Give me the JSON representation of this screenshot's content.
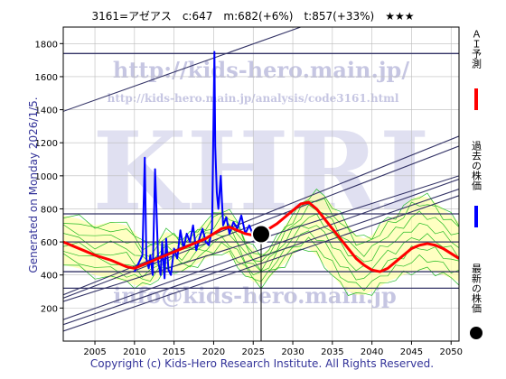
{
  "header": {
    "title": "3161=アゼアス　c:647　m:682(+6%)　t:857(+33%)　★★★"
  },
  "side_label": "Generated on Monday 2026/1/5.",
  "footer": "Copyright (c) Kids-Hero Research Institute. All Rights Reserved.",
  "watermarks": {
    "brand": "KHRI",
    "url1": "http://kids-hero.main.jp/",
    "url2": "http://kids-hero.main.jp/analysis/code3161.html",
    "email": "info@kids-hero.main.jp"
  },
  "legend": [
    {
      "label": "ＡＩ予測",
      "color": "#ff0000",
      "marker": "line"
    },
    {
      "label": "過去の株価",
      "color": "#0000ff",
      "marker": "line"
    },
    {
      "label": "最新の株価",
      "color": "#000000",
      "marker": "dot"
    }
  ],
  "chart_data": {
    "type": "line",
    "xlim": [
      2001,
      2051
    ],
    "ylim": [
      0,
      1900
    ],
    "x_ticks": [
      2005,
      2010,
      2015,
      2020,
      2025,
      2030,
      2035,
      2040,
      2045,
      2050
    ],
    "y_ticks": [
      200,
      400,
      600,
      800,
      1000,
      1200,
      1400,
      1600,
      1800
    ],
    "horizontal_lines": [
      1740,
      770,
      600,
      420,
      320
    ],
    "trend_lines": [
      {
        "x": [
          2001,
          2031
        ],
        "y": [
          1390,
          1900
        ]
      },
      {
        "x": [
          2001,
          2051
        ],
        "y": [
          280,
          1240
        ]
      },
      {
        "x": [
          2001,
          2051
        ],
        "y": [
          260,
          1180
        ]
      },
      {
        "x": [
          2001,
          2051
        ],
        "y": [
          240,
          1000
        ]
      },
      {
        "x": [
          2001,
          2051
        ],
        "y": [
          130,
          980
        ]
      },
      {
        "x": [
          2001,
          2051
        ],
        "y": [
          100,
          920
        ]
      },
      {
        "x": [
          2001,
          2051
        ],
        "y": [
          60,
          880
        ]
      }
    ],
    "latest": {
      "x": 2026.0,
      "y": 647
    },
    "series": [
      {
        "name": "過去の株価",
        "color": "#0000ff",
        "x": [
          2010.0,
          2010.5,
          2011.0,
          2011.3,
          2011.5,
          2011.8,
          2012.0,
          2012.3,
          2012.6,
          2013.0,
          2013.3,
          2013.5,
          2013.8,
          2014.0,
          2014.3,
          2014.6,
          2015.0,
          2015.4,
          2015.8,
          2016.2,
          2016.6,
          2017.0,
          2017.4,
          2017.8,
          2018.2,
          2018.6,
          2019.0,
          2019.4,
          2019.8,
          2020.0,
          2020.1,
          2020.2,
          2020.4,
          2020.6,
          2020.9,
          2021.2,
          2021.6,
          2022.0,
          2022.5,
          2023.0,
          2023.5,
          2024.0,
          2024.5,
          2025.0
        ],
        "y": [
          420,
          470,
          520,
          1110,
          500,
          440,
          520,
          400,
          1040,
          480,
          400,
          600,
          380,
          620,
          430,
          400,
          560,
          500,
          670,
          560,
          650,
          600,
          700,
          550,
          620,
          680,
          600,
          580,
          680,
          1400,
          1750,
          1180,
          900,
          800,
          1000,
          700,
          750,
          650,
          720,
          680,
          760,
          650,
          700,
          640
        ]
      },
      {
        "name": "ＡＩ予測",
        "color": "#ff0000",
        "x": [
          2001,
          2003,
          2005,
          2007,
          2009,
          2010,
          2011,
          2012,
          2013,
          2014,
          2015,
          2016,
          2017,
          2018,
          2019,
          2020,
          2021,
          2022,
          2023,
          2024,
          2025,
          2026,
          2027,
          2028,
          2029,
          2030,
          2031,
          2032,
          2033,
          2034,
          2035,
          2036,
          2037,
          2038,
          2039,
          2040,
          2041,
          2042,
          2043,
          2044,
          2045,
          2046,
          2047,
          2048,
          2049,
          2050,
          2051
        ],
        "y": [
          600,
          560,
          520,
          490,
          450,
          440,
          460,
          480,
          500,
          520,
          540,
          560,
          580,
          600,
          620,
          650,
          680,
          690,
          670,
          650,
          640,
          650,
          680,
          710,
          750,
          790,
          830,
          840,
          800,
          740,
          680,
          620,
          560,
          500,
          460,
          430,
          420,
          440,
          480,
          520,
          560,
          580,
          590,
          580,
          560,
          530,
          500
        ]
      }
    ],
    "bands": {
      "x": [
        2001,
        2003,
        2005,
        2007,
        2009,
        2010,
        2011,
        2012,
        2013,
        2014,
        2015,
        2016,
        2017,
        2018,
        2019,
        2020,
        2021,
        2022,
        2023,
        2024,
        2025,
        2026,
        2027,
        2028,
        2029,
        2030,
        2031,
        2032,
        2033,
        2034,
        2035,
        2036,
        2037,
        2038,
        2039,
        2040,
        2041,
        2042,
        2043,
        2044,
        2045,
        2046,
        2047,
        2048,
        2049,
        2050,
        2051
      ],
      "upper": [
        760,
        740,
        700,
        720,
        700,
        660,
        600,
        580,
        620,
        660,
        650,
        620,
        640,
        680,
        720,
        760,
        800,
        780,
        720,
        620,
        560,
        520,
        560,
        620,
        700,
        760,
        820,
        880,
        900,
        880,
        820,
        760,
        700,
        640,
        620,
        640,
        700,
        740,
        760,
        800,
        860,
        880,
        870,
        840,
        800,
        760,
        720
      ],
      "lower": [
        460,
        440,
        400,
        380,
        360,
        340,
        330,
        350,
        380,
        420,
        430,
        420,
        440,
        470,
        500,
        520,
        540,
        520,
        460,
        400,
        360,
        340,
        380,
        430,
        470,
        520,
        560,
        560,
        520,
        460,
        400,
        340,
        300,
        280,
        280,
        300,
        330,
        360,
        380,
        400,
        420,
        430,
        430,
        420,
        400,
        380,
        360
      ]
    }
  }
}
